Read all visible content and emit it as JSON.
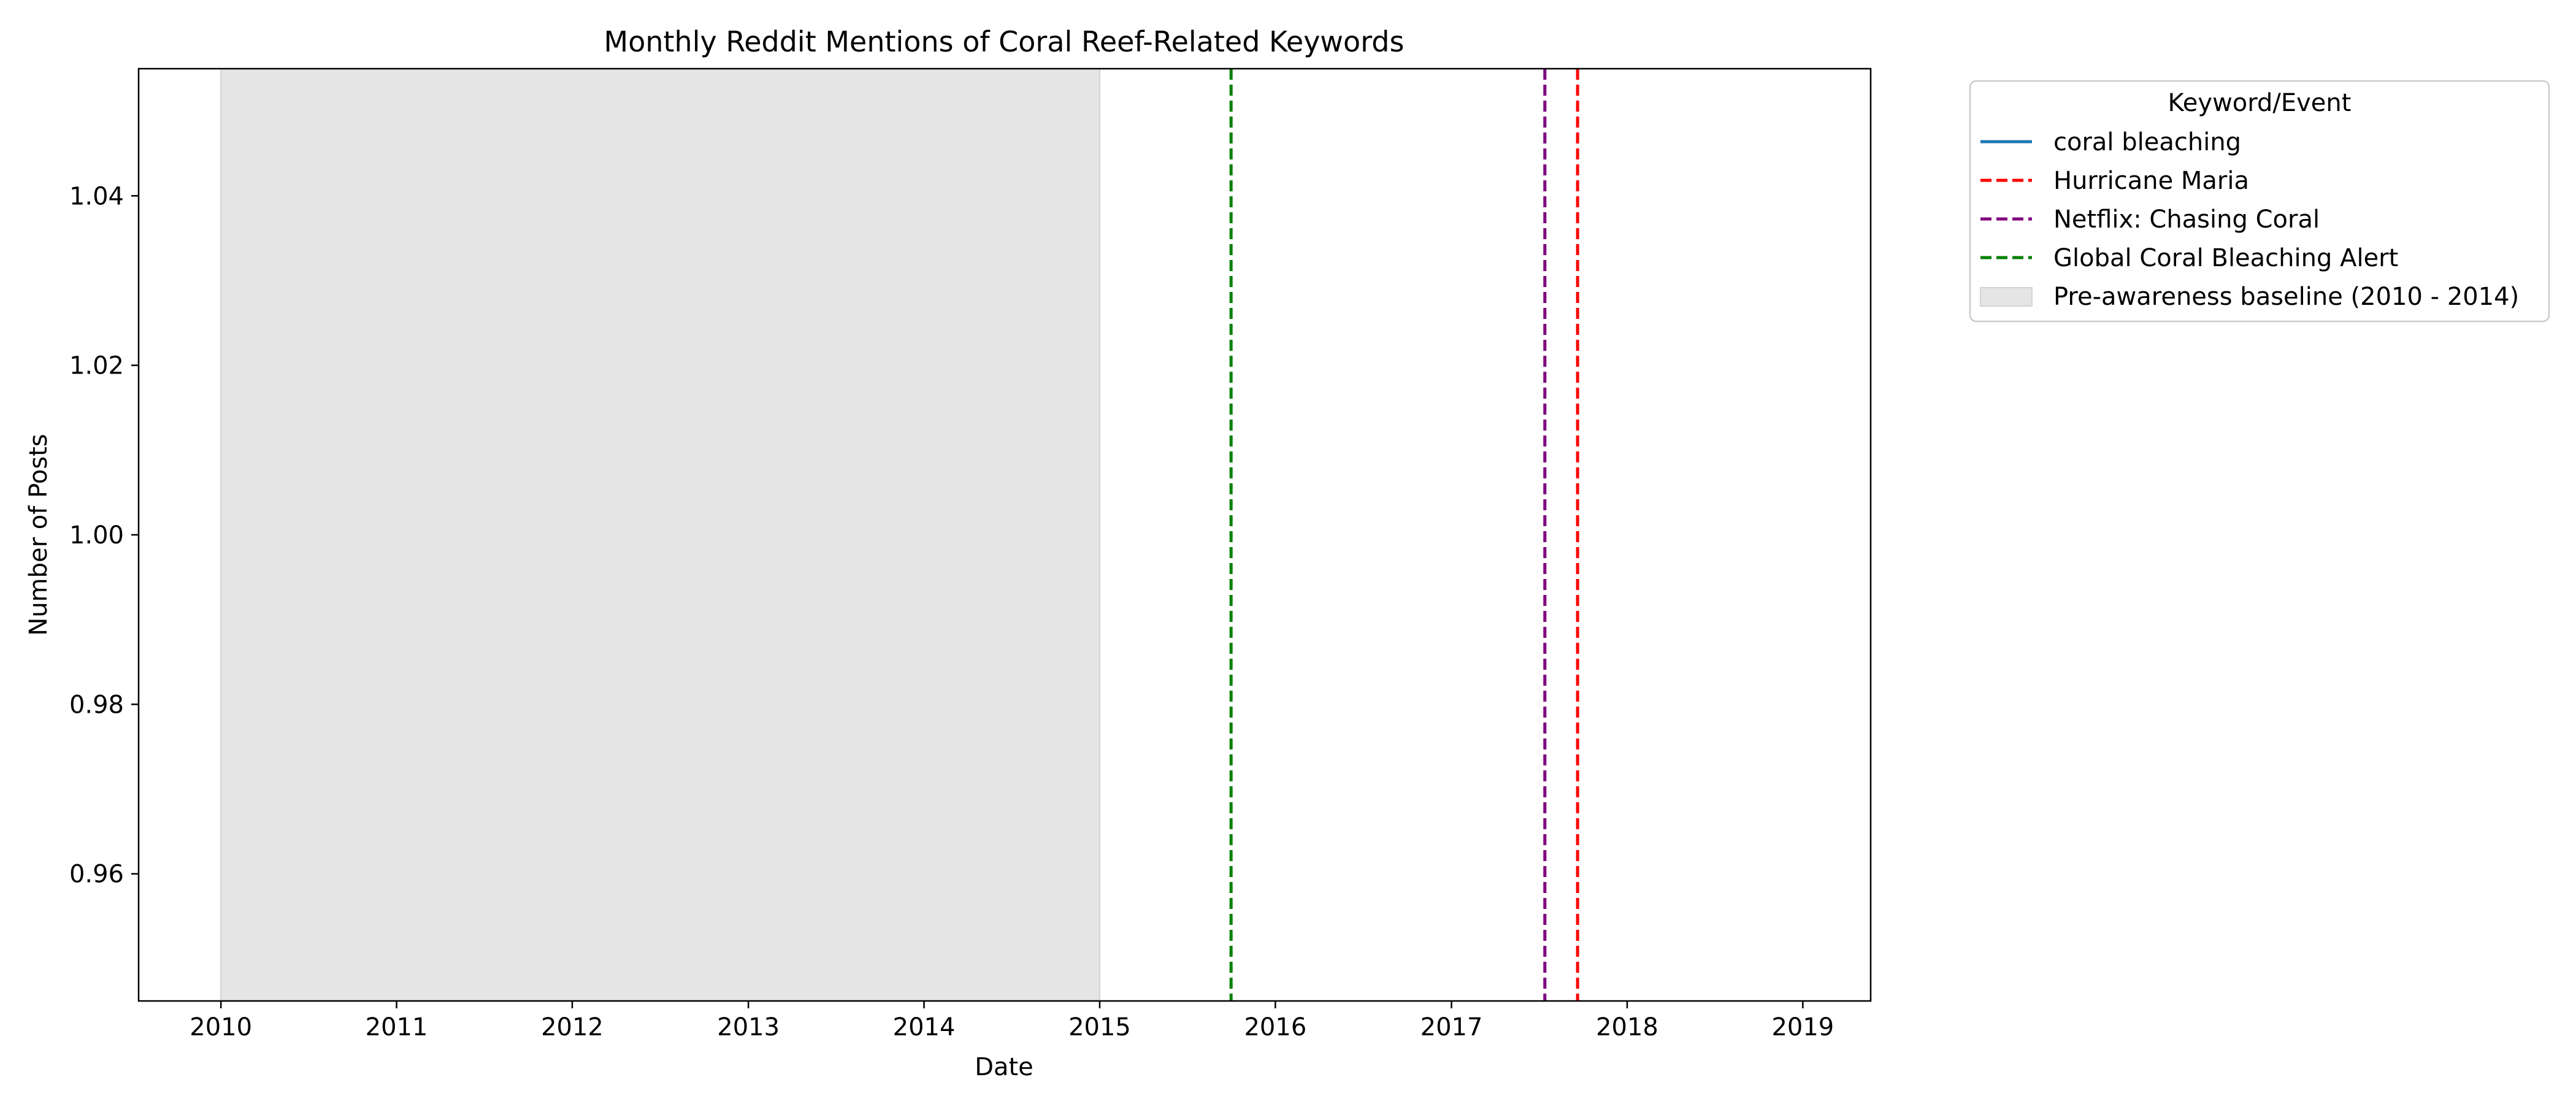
{
  "chart_data": {
    "type": "line",
    "title": "Monthly Reddit Mentions of Coral Reef-Related Keywords",
    "xlabel": "Date",
    "ylabel": "Number of Posts",
    "x_axis_type": "date",
    "xlim": [
      "2009-07-14",
      "2019-05-22"
    ],
    "ylim": [
      0.945,
      1.055
    ],
    "x_ticks": [
      "2010",
      "2011",
      "2012",
      "2013",
      "2014",
      "2015",
      "2016",
      "2017",
      "2018",
      "2019"
    ],
    "x_tick_dates": [
      "2010-01-01",
      "2011-01-01",
      "2012-01-01",
      "2013-01-01",
      "2014-01-01",
      "2015-01-01",
      "2016-01-01",
      "2017-01-01",
      "2018-01-01",
      "2019-01-01"
    ],
    "y_ticks": [
      0.96,
      0.98,
      1.0,
      1.02,
      1.04
    ],
    "y_tick_labels": [
      "0.96",
      "0.98",
      "1.00",
      "1.02",
      "1.04"
    ],
    "grid": false,
    "legend_title": "Keyword/Event",
    "legend_position": "outside-upper-right",
    "series": [
      {
        "name": "coral bleaching",
        "color": "#1f77b4",
        "style": "solid",
        "points": []
      }
    ],
    "events": [
      {
        "name": "Hurricane Maria",
        "date": "2017-09-20",
        "color": "#ff0000",
        "style": "dashed"
      },
      {
        "name": "Netflix: Chasing Coral",
        "date": "2017-07-14",
        "color": "#800080",
        "style": "dashed"
      },
      {
        "name": "Global Coral Bleaching Alert",
        "date": "2015-10-01",
        "color": "#008000",
        "style": "dashed"
      }
    ],
    "shaded_regions": [
      {
        "name": "Pre-awareness baseline (2010 - 2014)",
        "start": "2010-01-01",
        "end": "2015-01-01",
        "color": "#d3d3d3"
      }
    ]
  }
}
